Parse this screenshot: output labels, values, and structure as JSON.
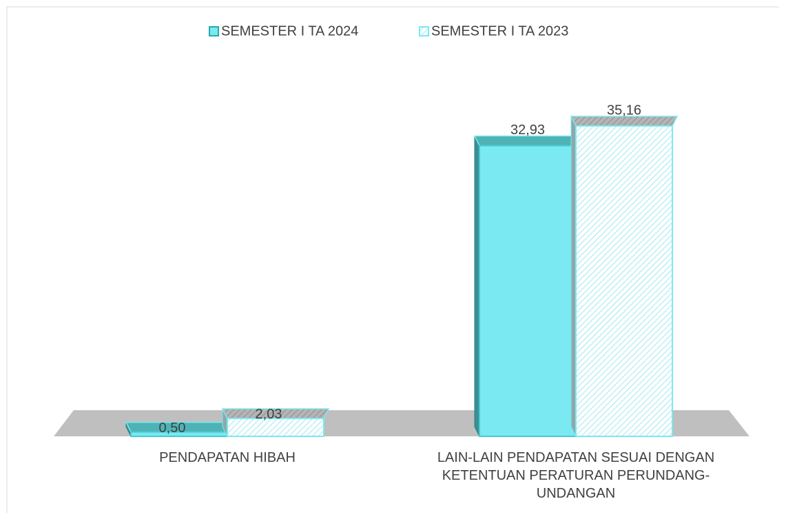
{
  "chart_data": {
    "type": "bar3d",
    "categories": [
      "PENDAPATAN HIBAH",
      "LAIN-LAIN PENDAPATAN SESUAI DENGAN KETENTUAN PERATURAN PERUNDANG-UNDANGAN"
    ],
    "series": [
      {
        "name": "SEMESTER I TA 2024",
        "color": "#7ae9f1",
        "values": [
          0.5,
          32.93
        ],
        "value_labels": [
          "0,50",
          "32,93"
        ]
      },
      {
        "name": "SEMESTER I TA 2023",
        "color": "#7ae9f1",
        "pattern": "hatched",
        "values": [
          2.03,
          35.16
        ],
        "value_labels": [
          "2,03",
          "35,16"
        ]
      }
    ],
    "legend": "top"
  }
}
